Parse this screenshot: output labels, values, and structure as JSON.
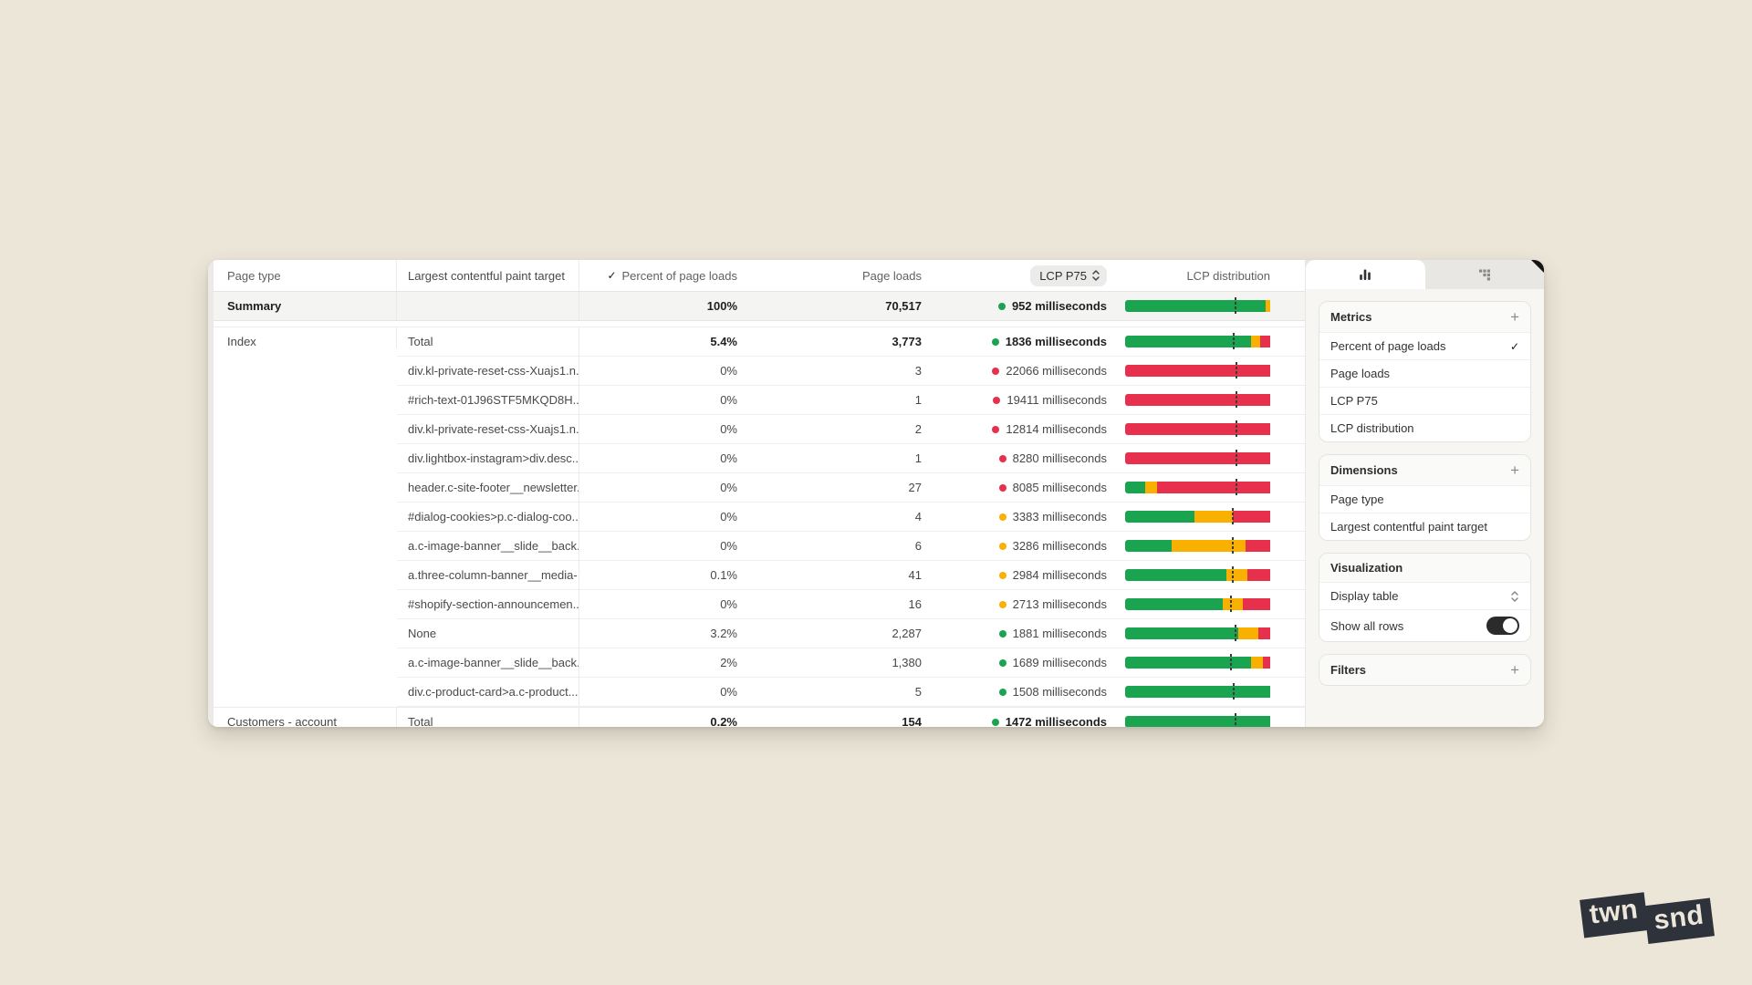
{
  "colors": {
    "good": "#1aa44f",
    "needs": "#f9b000",
    "poor": "#e7304c"
  },
  "table": {
    "header": {
      "page_type": "Page type",
      "target": "Largest contentful paint target",
      "percent": "Percent of page loads",
      "loads": "Page loads",
      "p75": "LCP P75",
      "dist": "LCP distribution"
    },
    "summary_row": {
      "page_type": "Summary",
      "target": "",
      "percent": "100%",
      "loads": "70,517",
      "p75": "952 milliseconds",
      "status": "good",
      "dist": [
        [
          "good",
          97
        ],
        [
          "needs",
          3
        ]
      ],
      "marker": 76
    },
    "groups": [
      {
        "page_type": "Index",
        "rows": [
          {
            "target": "Total",
            "percent": "5.4%",
            "loads": "3,773",
            "p75": "1836 milliseconds",
            "status": "good",
            "dist": [
              [
                "good",
                87
              ],
              [
                "needs",
                6
              ],
              [
                "poor",
                7
              ]
            ],
            "marker": 75,
            "bold": true
          },
          {
            "target": "div.kl-private-reset-css-Xuajs1.n...",
            "percent": "0%",
            "loads": "3",
            "p75": "22066 milliseconds",
            "status": "poor",
            "dist": [
              [
                "poor",
                100
              ]
            ],
            "marker": 77
          },
          {
            "target": "#rich-text-01J96STF5MKQD8H...",
            "percent": "0%",
            "loads": "1",
            "p75": "19411 milliseconds",
            "status": "poor",
            "dist": [
              [
                "poor",
                100
              ]
            ],
            "marker": 77
          },
          {
            "target": "div.kl-private-reset-css-Xuajs1.n...",
            "percent": "0%",
            "loads": "2",
            "p75": "12814 milliseconds",
            "status": "poor",
            "dist": [
              [
                "poor",
                100
              ]
            ],
            "marker": 77
          },
          {
            "target": "div.lightbox-instagram>div.desc...",
            "percent": "0%",
            "loads": "1",
            "p75": "8280 milliseconds",
            "status": "poor",
            "dist": [
              [
                "poor",
                100
              ]
            ],
            "marker": 77
          },
          {
            "target": "header.c-site-footer__newsletter...",
            "percent": "0%",
            "loads": "27",
            "p75": "8085 milliseconds",
            "status": "poor",
            "dist": [
              [
                "good",
                14
              ],
              [
                "needs",
                8
              ],
              [
                "poor",
                78
              ]
            ],
            "marker": 77
          },
          {
            "target": "#dialog-cookies>p.c-dialog-coo...",
            "percent": "0%",
            "loads": "4",
            "p75": "3383 milliseconds",
            "status": "needs",
            "dist": [
              [
                "good",
                48
              ],
              [
                "needs",
                26
              ],
              [
                "poor",
                26
              ]
            ],
            "marker": 74
          },
          {
            "target": "a.c-image-banner__slide__back...",
            "percent": "0%",
            "loads": "6",
            "p75": "3286 milliseconds",
            "status": "needs",
            "dist": [
              [
                "good",
                32
              ],
              [
                "needs",
                51
              ],
              [
                "poor",
                17
              ]
            ],
            "marker": 74
          },
          {
            "target": "a.three-column-banner__media-...",
            "percent": "0.1%",
            "loads": "41",
            "p75": "2984 milliseconds",
            "status": "needs",
            "dist": [
              [
                "good",
                70
              ],
              [
                "needs",
                14
              ],
              [
                "poor",
                16
              ]
            ],
            "marker": 74
          },
          {
            "target": "#shopify-section-announcemen...",
            "percent": "0%",
            "loads": "16",
            "p75": "2713 milliseconds",
            "status": "needs",
            "dist": [
              [
                "good",
                67
              ],
              [
                "needs",
                14
              ],
              [
                "poor",
                19
              ]
            ],
            "marker": 73
          },
          {
            "target": "None",
            "percent": "3.2%",
            "loads": "2,287",
            "p75": "1881 milliseconds",
            "status": "good",
            "dist": [
              [
                "good",
                78
              ],
              [
                "needs",
                14
              ],
              [
                "poor",
                8
              ]
            ],
            "marker": 76
          },
          {
            "target": "a.c-image-banner__slide__back...",
            "percent": "2%",
            "loads": "1,380",
            "p75": "1689 milliseconds",
            "status": "good",
            "dist": [
              [
                "good",
                87
              ],
              [
                "needs",
                8
              ],
              [
                "poor",
                5
              ]
            ],
            "marker": 73
          },
          {
            "target": "div.c-product-card>a.c-product...",
            "percent": "0%",
            "loads": "5",
            "p75": "1508 milliseconds",
            "status": "good",
            "dist": [
              [
                "good",
                100
              ]
            ],
            "marker": 75
          }
        ]
      },
      {
        "page_type": "Customers - account",
        "rows": [
          {
            "target": "Total",
            "percent": "0.2%",
            "loads": "154",
            "p75": "1472 milliseconds",
            "status": "good",
            "dist": [
              [
                "good",
                100
              ]
            ],
            "marker": 76,
            "bold": true
          }
        ]
      }
    ]
  },
  "panel": {
    "metrics": {
      "title": "Metrics",
      "add_label": "+",
      "items": [
        {
          "label": "Percent of page loads",
          "checked": true
        },
        {
          "label": "Page loads"
        },
        {
          "label": "LCP P75"
        },
        {
          "label": "LCP distribution"
        }
      ]
    },
    "dimensions": {
      "title": "Dimensions",
      "add_label": "+",
      "items": [
        {
          "label": "Page type"
        },
        {
          "label": "Largest contentful paint target"
        }
      ]
    },
    "visualization": {
      "title": "Visualization",
      "select_value": "Display table",
      "toggle_label": "Show all rows",
      "toggle_on": true
    },
    "filters": {
      "title": "Filters",
      "add_label": "+"
    }
  },
  "logo": {
    "left": "twn",
    "right": "snd"
  }
}
